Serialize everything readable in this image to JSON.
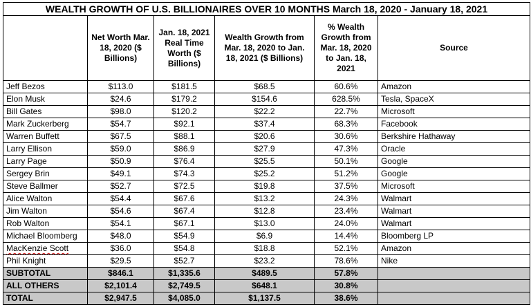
{
  "title": "WEALTH GROWTH OF U.S. BILLIONAIRES OVER 10 MONTHS March 18, 2020 - January 18, 2021",
  "headers": [
    "",
    "Net Worth Mar. 18, 2020 ($ Billions)",
    "Jan. 18, 2021 Real Time Worth ($ Billions)",
    "Wealth Growth from Mar. 18, 2020 to Jan. 18, 2021 ($ Billions)",
    "% Wealth Growth from Mar. 18, 2020 to Jan. 18, 2021",
    "Source"
  ],
  "rows": [
    {
      "name": "Jeff Bezos",
      "net_worth": "$113.0",
      "real_time": "$181.5",
      "growth": "$68.5",
      "pct": "60.6%",
      "source": "Amazon"
    },
    {
      "name": "Elon Musk",
      "net_worth": "$24.6",
      "real_time": "$179.2",
      "growth": "$154.6",
      "pct": "628.5%",
      "source": "Tesla, SpaceX"
    },
    {
      "name": "Bill Gates",
      "net_worth": "$98.0",
      "real_time": "$120.2",
      "growth": "$22.2",
      "pct": "22.7%",
      "source": "Microsoft"
    },
    {
      "name": "Mark Zuckerberg",
      "net_worth": "$54.7",
      "real_time": "$92.1",
      "growth": "$37.4",
      "pct": "68.3%",
      "source": "Facebook"
    },
    {
      "name": "Warren Buffett",
      "net_worth": "$67.5",
      "real_time": "$88.1",
      "growth": "$20.6",
      "pct": "30.6%",
      "source": "Berkshire Hathaway"
    },
    {
      "name": "Larry Ellison",
      "net_worth": "$59.0",
      "real_time": "$86.9",
      "growth": "$27.9",
      "pct": "47.3%",
      "source": "Oracle"
    },
    {
      "name": "Larry Page",
      "net_worth": "$50.9",
      "real_time": "$76.4",
      "growth": "$25.5",
      "pct": "50.1%",
      "source": "Google"
    },
    {
      "name": "Sergey Brin",
      "net_worth": "$49.1",
      "real_time": "$74.3",
      "growth": "$25.2",
      "pct": "51.2%",
      "source": "Google"
    },
    {
      "name": "Steve Ballmer",
      "net_worth": "$52.7",
      "real_time": "$72.5",
      "growth": "$19.8",
      "pct": "37.5%",
      "source": "Microsoft"
    },
    {
      "name": "Alice Walton",
      "net_worth": "$54.4",
      "real_time": "$67.6",
      "growth": "$13.2",
      "pct": "24.3%",
      "source": "Walmart"
    },
    {
      "name": "Jim Walton",
      "net_worth": "$54.6",
      "real_time": "$67.4",
      "growth": "$12.8",
      "pct": "23.4%",
      "source": "Walmart"
    },
    {
      "name": "Rob Walton",
      "net_worth": "$54.1",
      "real_time": "$67.1",
      "growth": "$13.0",
      "pct": "24.0%",
      "source": "Walmart"
    },
    {
      "name": "Michael Bloomberg",
      "net_worth": "$48.0",
      "real_time": "$54.9",
      "growth": "$6.9",
      "pct": "14.4%",
      "source": "Bloomberg LP"
    },
    {
      "name": "MacKenzie Scott",
      "net_worth": "$36.0",
      "real_time": "$54.8",
      "growth": "$18.8",
      "pct": "52.1%",
      "source": "Amazon"
    },
    {
      "name": "Phil Knight",
      "net_worth": "$29.5",
      "real_time": "$52.7",
      "growth": "$23.2",
      "pct": "78.6%",
      "source": "Nike"
    }
  ],
  "summary": [
    {
      "name": "SUBTOTAL",
      "net_worth": "$846.1",
      "real_time": "$1,335.6",
      "growth": "$489.5",
      "pct": "57.8%",
      "source": ""
    },
    {
      "name": "ALL OTHERS",
      "net_worth": "$2,101.4",
      "real_time": "$2,749.5",
      "growth": "$648.1",
      "pct": "30.8%",
      "source": ""
    },
    {
      "name": "TOTAL",
      "net_worth": "$2,947.5",
      "real_time": "$4,085.0",
      "growth": "$1,137.5",
      "pct": "38.6%",
      "source": ""
    }
  ]
}
